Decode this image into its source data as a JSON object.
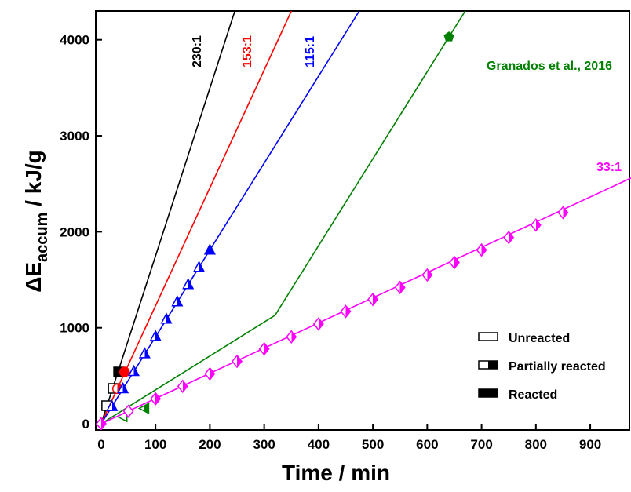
{
  "chart_data": {
    "type": "line",
    "x_label": "Time / min",
    "y_label": "ΔE",
    "y_label_sub": "accum",
    "y_label_unit": " / kJ/g",
    "xlim": [
      -10,
      975
    ],
    "ylim": [
      -65,
      4300
    ],
    "xticks": [
      0,
      100,
      200,
      300,
      400,
      500,
      600,
      700,
      800,
      900
    ],
    "yticks": [
      0,
      1000,
      2000,
      3000,
      4000
    ],
    "series": [
      {
        "name": "230:1",
        "color": "#000000",
        "marker": "square",
        "line": {
          "x": [
            0,
            246
          ],
          "values": [
            0,
            4300
          ]
        },
        "points": {
          "x": [
            10,
            22,
            32
          ],
          "values": [
            188,
            368,
            540
          ],
          "fill": [
            "open",
            "open",
            "filled"
          ]
        }
      },
      {
        "name": "153:1",
        "color": "#ff0000",
        "marker": "circle",
        "line": {
          "x": [
            0,
            350
          ],
          "values": [
            0,
            4300
          ]
        },
        "points": {
          "x": [
            30,
            43
          ],
          "values": [
            365,
            540
          ],
          "fill": [
            "half",
            "filled"
          ]
        }
      },
      {
        "name": "115:1",
        "color": "#0000ff",
        "marker": "triangle",
        "line": {
          "x": [
            0,
            475
          ],
          "values": [
            0,
            4300
          ]
        },
        "points": {
          "x": [
            20,
            40,
            60,
            80,
            100,
            120,
            140,
            160,
            180,
            200
          ],
          "values": [
            180,
            365,
            545,
            730,
            910,
            1090,
            1270,
            1450,
            1630,
            1810
          ],
          "fill": [
            "half",
            "half",
            "half",
            "half",
            "half",
            "half",
            "half",
            "half",
            "half",
            "filled"
          ]
        }
      },
      {
        "name": "Granados et al., 2016",
        "color": "#008000",
        "marker": "triangle-left",
        "line": {
          "x": [
            0,
            320,
            640,
            670
          ],
          "values": [
            0,
            1130,
            4030,
            4300
          ]
        },
        "points": {
          "x": [
            40,
            80,
            640
          ],
          "values": [
            75,
            160,
            4030
          ],
          "fill": [
            "open",
            "half",
            "filled"
          ]
        }
      },
      {
        "name": "33:1",
        "color": "#ff00ff",
        "marker": "diamond",
        "line": {
          "x": [
            0,
            975
          ],
          "values": [
            0,
            2560
          ]
        },
        "points": {
          "x": [
            0,
            50,
            100,
            150,
            200,
            250,
            300,
            350,
            400,
            450,
            500,
            550,
            600,
            650,
            700,
            750,
            800,
            850
          ],
          "values": [
            0,
            130,
            260,
            390,
            520,
            650,
            780,
            905,
            1040,
            1170,
            1295,
            1420,
            1550,
            1680,
            1810,
            1940,
            2070,
            2200
          ],
          "fill": [
            "half",
            "open",
            "half",
            "half",
            "half",
            "half",
            "half",
            "half",
            "half",
            "half",
            "half",
            "half",
            "half",
            "half",
            "half",
            "half",
            "half",
            "half"
          ]
        }
      }
    ],
    "legend": [
      {
        "label": "Unreacted",
        "fill": "open"
      },
      {
        "label": "Partially reacted",
        "fill": "half"
      },
      {
        "label": "Reacted",
        "fill": "filled"
      }
    ]
  }
}
